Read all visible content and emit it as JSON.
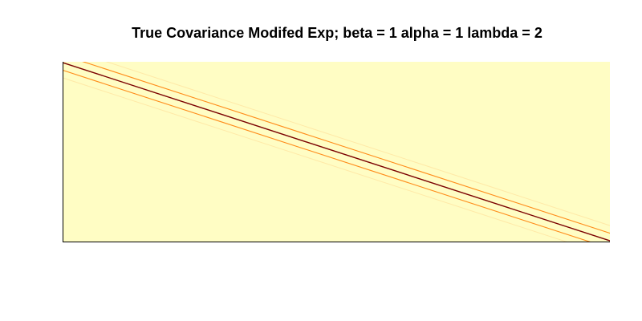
{
  "chart_data": {
    "type": "heatmap",
    "title": "True Covariance Modifed Exp; beta =  1 alpha = 1 lambda = 2",
    "xlabel": "",
    "ylabel": "",
    "grid": false,
    "legend": "none",
    "colors": {
      "background": "#fffdc4",
      "plot_fill": "#fffdc4",
      "diagonal": "#7a0000",
      "near_diagonal": "#ff8c1a",
      "faint_band": "#ffe9a8",
      "frame": "#000000"
    },
    "bands": [
      {
        "name": "diagonal",
        "offset": 0,
        "value": 1.0
      },
      {
        "name": "upper-near",
        "offset": -1,
        "value": 0.55
      },
      {
        "name": "lower-near",
        "offset": 1,
        "value": 0.55
      },
      {
        "name": "upper-faint",
        "offset": -2,
        "value": 0.12
      },
      {
        "name": "lower-faint",
        "offset": 2,
        "value": 0.12
      }
    ]
  }
}
